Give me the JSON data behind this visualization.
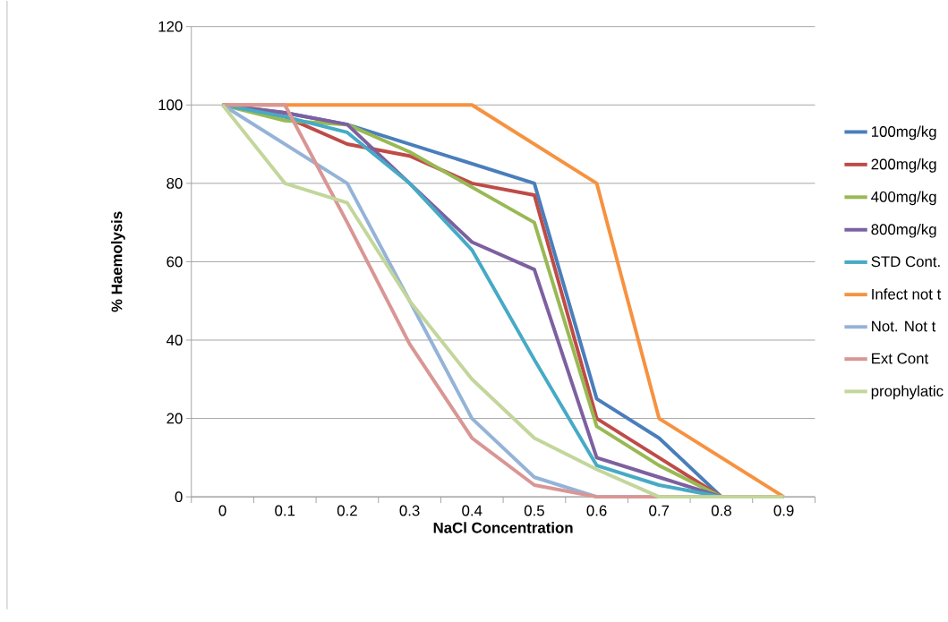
{
  "chart_data": {
    "type": "line",
    "xlabel": "NaCl Concentration",
    "ylabel": "% Haemolysis",
    "categories": [
      "0",
      "0.1",
      "0.2",
      "0.3",
      "0.4",
      "0.5",
      "0.6",
      "0.7",
      "0.8",
      "0.9"
    ],
    "ylim": [
      0,
      120
    ],
    "yticks": [
      0,
      20,
      40,
      60,
      80,
      100,
      120
    ],
    "grid": "y",
    "legend": "right",
    "marker": "none",
    "line_style": "solid",
    "series": [
      {
        "name": "100mg/kg",
        "color": "#4a7ebb",
        "values": [
          100,
          98,
          95,
          90,
          85,
          80,
          25,
          15,
          0,
          0
        ]
      },
      {
        "name": "200mg/kg",
        "color": "#be4b48",
        "values": [
          100,
          97,
          90,
          87,
          80,
          77,
          20,
          10,
          0,
          0
        ]
      },
      {
        "name": "400mg/kg",
        "color": "#98b954",
        "values": [
          100,
          96,
          95,
          88,
          79,
          70,
          18,
          8,
          0,
          0
        ]
      },
      {
        "name": "800mg/kg",
        "color": "#7d60a0",
        "values": [
          100,
          98,
          95,
          80,
          65,
          58,
          10,
          5,
          0,
          0
        ]
      },
      {
        "name": "STD Cont.",
        "color": "#46aac5",
        "values": [
          100,
          97,
          93,
          80,
          63,
          35,
          8,
          3,
          0,
          0
        ]
      },
      {
        "name": "Infect not t",
        "color": "#f69240",
        "values": [
          100,
          100,
          100,
          100,
          100,
          90,
          80,
          20,
          10,
          0
        ]
      },
      {
        "name": "Not. Not t",
        "color": "#95b3d7",
        "values": [
          100,
          90,
          80,
          50,
          20,
          5,
          0,
          0,
          0,
          0
        ]
      },
      {
        "name": "Ext Cont",
        "color": "#d99694",
        "values": [
          100,
          100,
          70,
          39,
          15,
          3,
          0,
          0,
          0,
          0
        ]
      },
      {
        "name": "prophylatic",
        "color": "#c3d69b",
        "values": [
          100,
          80,
          75,
          50,
          30,
          15,
          7,
          0,
          0,
          0
        ]
      }
    ]
  }
}
